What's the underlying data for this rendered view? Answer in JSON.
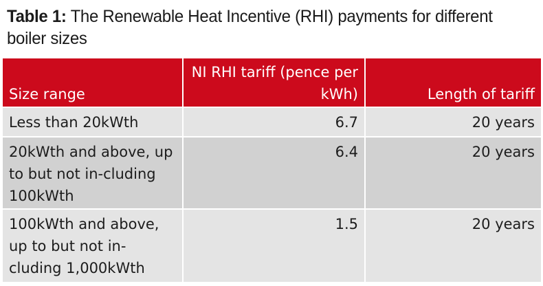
{
  "title": {
    "label": "Table 1:",
    "text": "The Renewable Heat Incentive (RHI) payments for different boiler sizes"
  },
  "headers": [
    "Size range",
    "NI RHI tariff (pence per kWh)",
    "Length of tariff"
  ],
  "rows": [
    {
      "size": "Less than 20kWth",
      "tariff": "6.7",
      "length": "20 years"
    },
    {
      "size": "20kWth and above, up to but not in-cluding 100kWth",
      "tariff": "6.4",
      "length": "20 years"
    },
    {
      "size": "100kWth and above, up to but not in-cluding 1,000kWth",
      "tariff": "1.5",
      "length": "20 years"
    }
  ],
  "colors": {
    "header": "#cc0a1c",
    "row_light": "#e4e4e4",
    "row_dark": "#d1d1d1"
  }
}
